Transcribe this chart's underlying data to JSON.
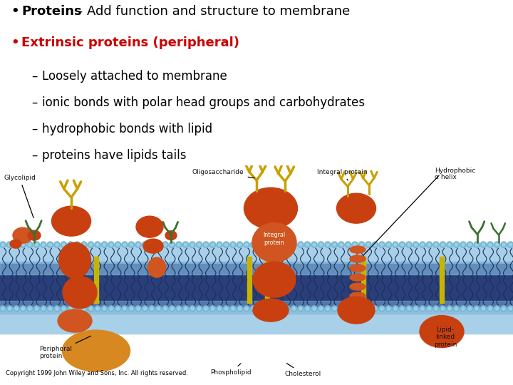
{
  "background_color": "#ffffff",
  "bullet1_bold": "Proteins",
  "bullet1_normal": " - Add function and structure to membrane",
  "bullet2_text": "Extrinsic proteins (peripheral)",
  "bullet2_color": "#cc0000",
  "sub_bullets": [
    "Loosely attached to membrane",
    "ionic bonds with polar head groups and carbohydrates",
    "hydrophobic bonds with lipid",
    "proteins have lipids tails"
  ],
  "font_size_main": 13,
  "font_size_sub": 12,
  "copyright_text": "Copyright 1999 John Wiley and Sons, Inc. All rights reserved.",
  "copyright_fontsize": 6,
  "colors": {
    "membrane_dark_blue": "#2a3f7a",
    "membrane_mid_blue": "#4a6faa",
    "membrane_light_blue": "#7ab0d8",
    "membrane_outer_light": "#a8d0e8",
    "bead": "#7ab8d4",
    "bead_highlight": "#aadcf0",
    "protein_red": "#c84010",
    "protein_red2": "#d05520",
    "yellow_sugar": "#c8a000",
    "green_sugar": "#3a7030",
    "orange_peripheral": "#d88820",
    "cholesterol_yellow": "#c8b400",
    "lipid_tail": "#1a2f5a",
    "label_black": "#111111"
  }
}
